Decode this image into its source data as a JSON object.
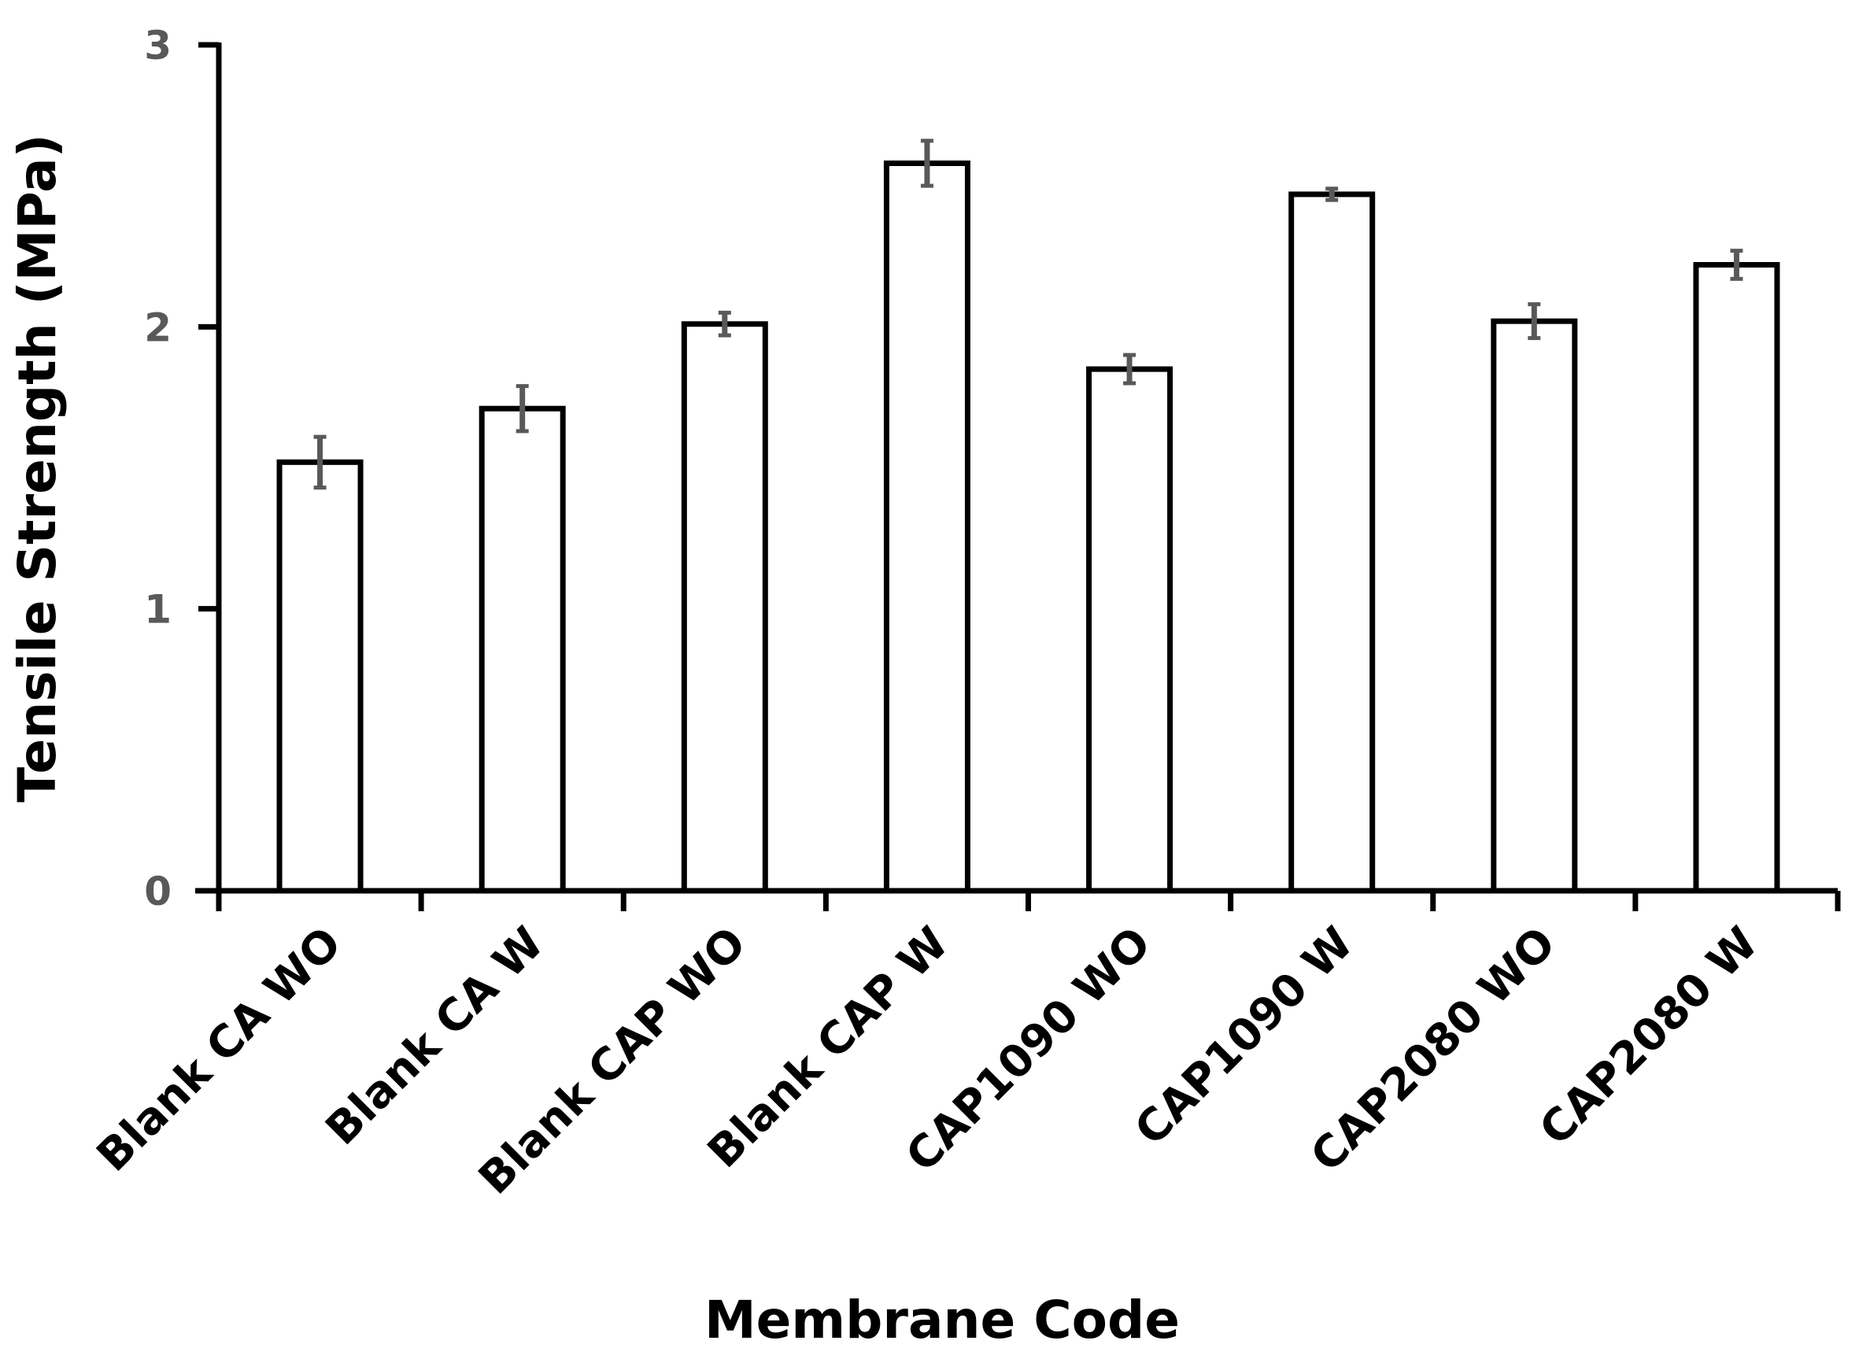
{
  "chart_data": {
    "type": "bar",
    "categories": [
      "Blank CA WO",
      "Blank CA W",
      "Blank CAP WO",
      "Blank CAP W",
      "CAP1090 WO",
      "CAP1090 W",
      "CAP2080 WO",
      "CAP2080 W"
    ],
    "values": [
      1.52,
      1.71,
      2.01,
      2.58,
      1.85,
      2.47,
      2.02,
      2.22
    ],
    "errors": [
      0.09,
      0.08,
      0.04,
      0.08,
      0.05,
      0.02,
      0.06,
      0.05
    ],
    "title": "",
    "xlabel": "Membrane Code",
    "ylabel": "Tensile Strength (MPa)",
    "ylim": [
      0,
      3
    ],
    "yticks": [
      "0",
      "1",
      "2",
      "3"
    ],
    "grid": false,
    "legend": "none",
    "colors": {
      "bar_fill": "#ffffff",
      "bar_stroke": "#000000",
      "axis": "#000000",
      "error_bar": "#595959",
      "tick_label": "#595959"
    }
  }
}
